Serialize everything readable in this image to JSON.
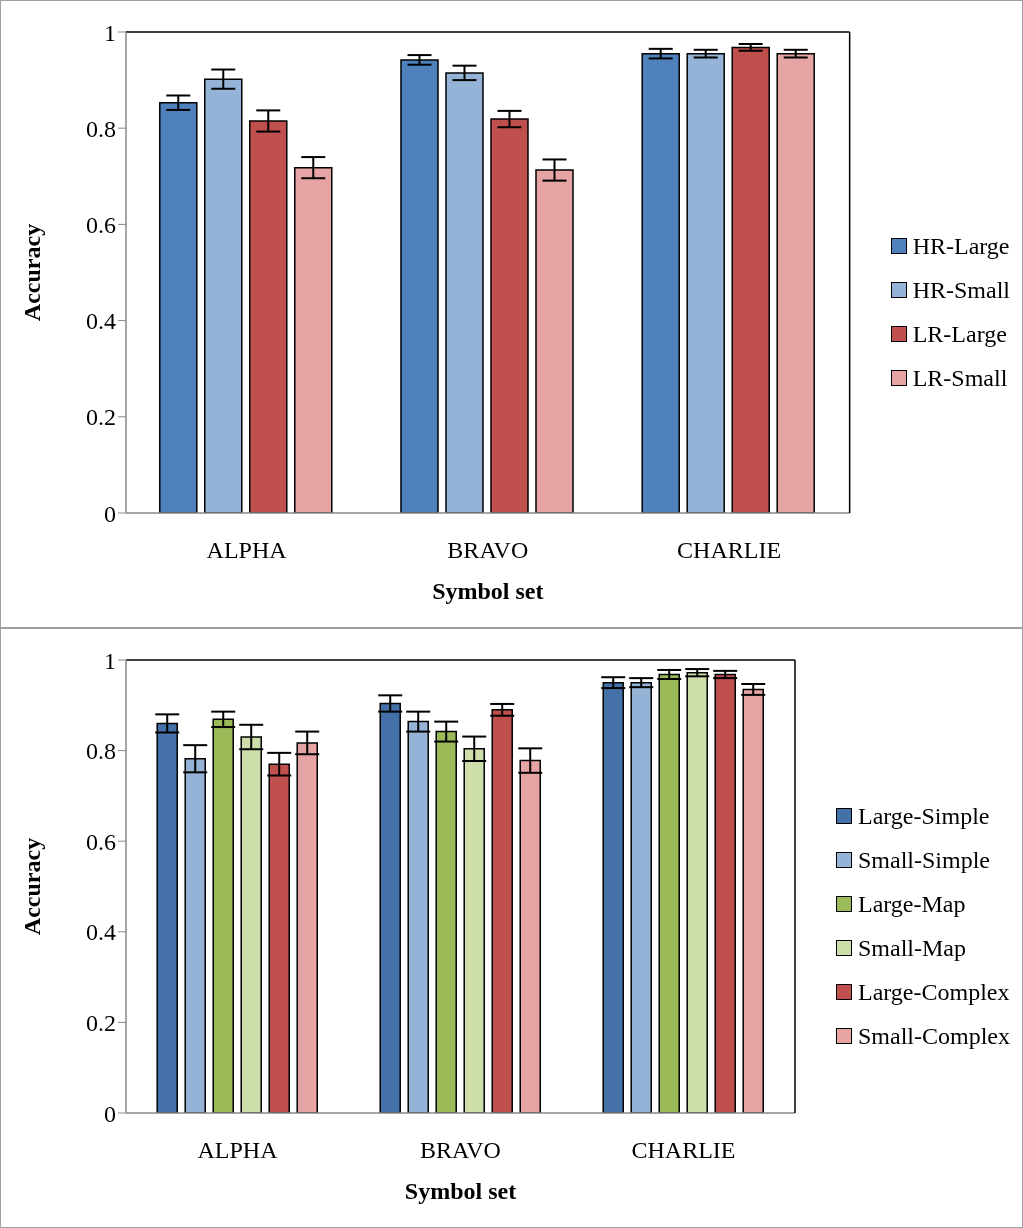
{
  "chart_data": [
    {
      "type": "bar",
      "xlabel": "Symbol set",
      "ylabel": "Accuracy",
      "categories": [
        "ALPHA",
        "BRAVO",
        "CHARLIE"
      ],
      "ylim": [
        0,
        1
      ],
      "yticks": [
        0,
        0.2,
        0.4,
        0.6,
        0.8,
        1
      ],
      "grid": false,
      "legend": "right",
      "series": [
        {
          "name": "HR-Large",
          "color": "#4f81bd",
          "values": [
            0.853,
            0.942,
            0.955
          ],
          "errors": [
            0.015,
            0.01,
            0.01
          ]
        },
        {
          "name": "HR-Small",
          "color": "#95b3d7",
          "values": [
            0.902,
            0.915,
            0.955
          ],
          "errors": [
            0.02,
            0.015,
            0.008
          ]
        },
        {
          "name": "LR-Large",
          "color": "#c0504d",
          "values": [
            0.815,
            0.819,
            0.968
          ],
          "errors": [
            0.022,
            0.017,
            0.007
          ]
        },
        {
          "name": "LR-Small",
          "color": "#e6a5a4",
          "values": [
            0.718,
            0.713,
            0.955
          ],
          "errors": [
            0.022,
            0.022,
            0.008
          ]
        }
      ]
    },
    {
      "type": "bar",
      "xlabel": "Symbol set",
      "ylabel": "Accuracy",
      "categories": [
        "ALPHA",
        "BRAVO",
        "CHARLIE"
      ],
      "ylim": [
        0,
        1
      ],
      "yticks": [
        0,
        0.2,
        0.4,
        0.6,
        0.8,
        1
      ],
      "grid": false,
      "legend": "right",
      "series": [
        {
          "name": "Large-Simple",
          "color": "#4471a8",
          "values": [
            0.86,
            0.904,
            0.95
          ],
          "errors": [
            0.02,
            0.018,
            0.012
          ]
        },
        {
          "name": "Small-Simple",
          "color": "#95b3d7",
          "values": [
            0.782,
            0.864,
            0.95
          ],
          "errors": [
            0.03,
            0.022,
            0.01
          ]
        },
        {
          "name": "Large-Map",
          "color": "#9bbb59",
          "values": [
            0.869,
            0.842,
            0.968
          ],
          "errors": [
            0.017,
            0.022,
            0.01
          ]
        },
        {
          "name": "Small-Map",
          "color": "#cddeab",
          "values": [
            0.83,
            0.804,
            0.972
          ],
          "errors": [
            0.027,
            0.027,
            0.008
          ]
        },
        {
          "name": "Large-Complex",
          "color": "#c0504d",
          "values": [
            0.77,
            0.89,
            0.968
          ],
          "errors": [
            0.025,
            0.013,
            0.008
          ]
        },
        {
          "name": "Small-Complex",
          "color": "#e6a5a4",
          "values": [
            0.817,
            0.778,
            0.935
          ],
          "errors": [
            0.025,
            0.027,
            0.012
          ]
        }
      ]
    }
  ]
}
